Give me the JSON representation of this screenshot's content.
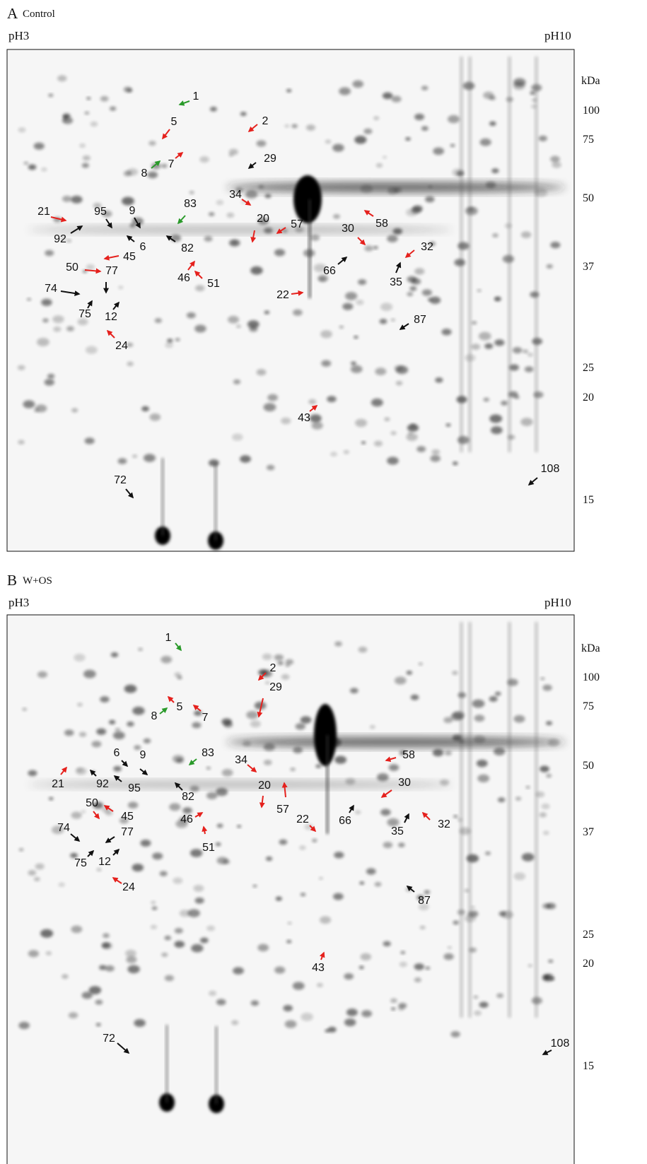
{
  "panels": [
    {
      "letter": "A",
      "condition": "Control",
      "ph_left": "pH3",
      "ph_right": "pH10",
      "mw_unit": "kDa",
      "mw_markers": [
        "100",
        "75",
        "50",
        "37",
        "25",
        "20",
        "15"
      ],
      "spots": [
        "1",
        "5",
        "2",
        "7",
        "8",
        "29",
        "34",
        "21",
        "95",
        "9",
        "83",
        "20",
        "57",
        "30",
        "58",
        "92",
        "6",
        "82",
        "45",
        "32",
        "66",
        "50",
        "77",
        "46",
        "51",
        "35",
        "74",
        "22",
        "75",
        "12",
        "87",
        "24",
        "43",
        "72",
        "108"
      ]
    },
    {
      "letter": "B",
      "condition": "W+OS",
      "ph_left": "pH3",
      "ph_right": "pH10",
      "mw_unit": "kDa",
      "mw_markers": [
        "100",
        "75",
        "50",
        "37",
        "25",
        "20",
        "15"
      ],
      "spots": [
        "1",
        "2",
        "29",
        "5",
        "7",
        "8",
        "34",
        "83",
        "58",
        "6",
        "9",
        "21",
        "92",
        "95",
        "20",
        "57",
        "30",
        "82",
        "50",
        "45",
        "66",
        "46",
        "22",
        "35",
        "32",
        "51",
        "74",
        "77",
        "75",
        "12",
        "24",
        "87",
        "43",
        "72",
        "108"
      ]
    }
  ]
}
